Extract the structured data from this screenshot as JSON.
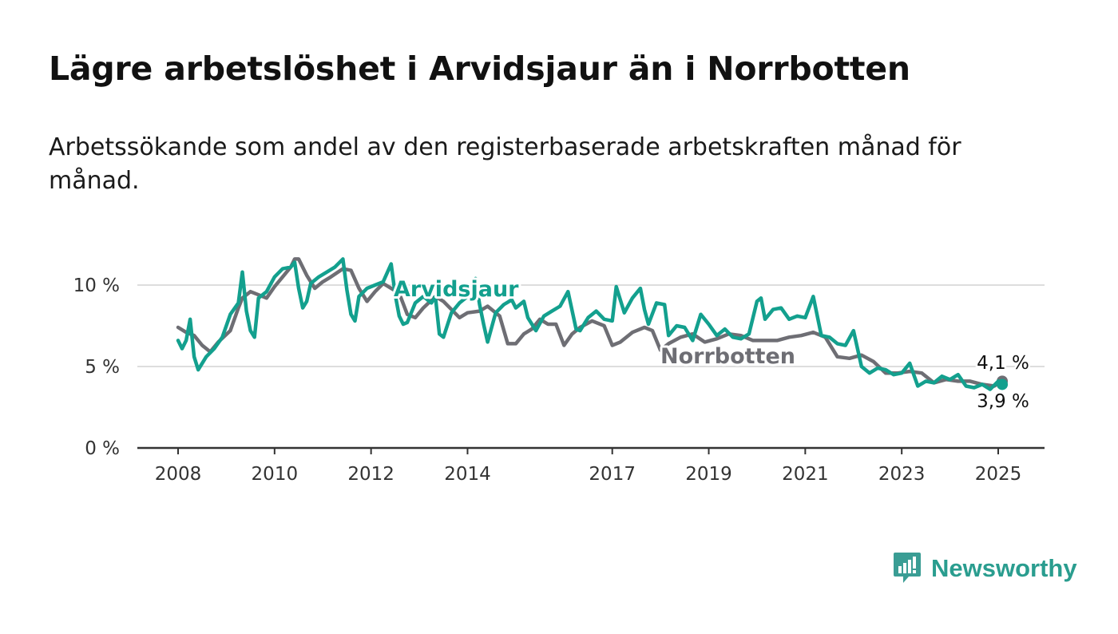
{
  "header": {
    "title": "Lägre arbetslöshet i Arvidsjaur än i Norrbotten",
    "subtitle": "Arbetssökande som andel av den registerbaserade arbetskraften månad för månad."
  },
  "brand": {
    "name": "Newsworthy",
    "icon": "bar-chart-speech-bubble-icon",
    "color": "#3a9d94"
  },
  "colors": {
    "arvidsjaur": "#13a08e",
    "norrbotten": "#6e6e74",
    "grid": "#dddddd",
    "axis": "#333333"
  },
  "chart_data": {
    "type": "line",
    "x_range": [
      "2008-01",
      "2025-02"
    ],
    "ylim": [
      0,
      12
    ],
    "y_ticks": [
      0,
      5,
      10
    ],
    "y_tick_labels": [
      "0 %",
      "5 %",
      "10 %"
    ],
    "x_ticks": [
      "2008-01",
      "2010-01",
      "2012-01",
      "2014-01",
      "2017-01",
      "2019-01",
      "2021-01",
      "2023-01",
      "2025-01"
    ],
    "x_tick_labels": [
      "2008",
      "2010",
      "2012",
      "2014",
      "2017",
      "2019",
      "2021",
      "2023",
      "2025"
    ],
    "grid": "horizontal",
    "series": [
      {
        "name": "Norrbotten",
        "key": "norrbotten",
        "end_label": "4,1 %",
        "points": [
          [
            "2008-01",
            7.4
          ],
          [
            "2008-03",
            7.1
          ],
          [
            "2008-05",
            6.9
          ],
          [
            "2008-07",
            6.3
          ],
          [
            "2008-09",
            5.9
          ],
          [
            "2008-11",
            6.5
          ],
          [
            "2009-02",
            7.2
          ],
          [
            "2009-04",
            8.6
          ],
          [
            "2009-05",
            9.2
          ],
          [
            "2009-07",
            9.6
          ],
          [
            "2009-09",
            9.4
          ],
          [
            "2009-11",
            9.2
          ],
          [
            "2010-01",
            9.9
          ],
          [
            "2010-03",
            10.5
          ],
          [
            "2010-05",
            11.1
          ],
          [
            "2010-06",
            11.6
          ],
          [
            "2010-07",
            11.6
          ],
          [
            "2010-09",
            10.6
          ],
          [
            "2010-11",
            9.8
          ],
          [
            "2011-01",
            10.2
          ],
          [
            "2011-03",
            10.5
          ],
          [
            "2011-06",
            11.0
          ],
          [
            "2011-08",
            10.9
          ],
          [
            "2011-10",
            9.8
          ],
          [
            "2011-12",
            9.0
          ],
          [
            "2012-02",
            9.6
          ],
          [
            "2012-04",
            10.1
          ],
          [
            "2012-06",
            9.8
          ],
          [
            "2012-08",
            9.5
          ],
          [
            "2012-10",
            8.2
          ],
          [
            "2012-12",
            8.0
          ],
          [
            "2013-02",
            8.6
          ],
          [
            "2013-05",
            9.3
          ],
          [
            "2013-07",
            9.0
          ],
          [
            "2013-09",
            8.5
          ],
          [
            "2013-11",
            8.0
          ],
          [
            "2014-01",
            8.3
          ],
          [
            "2014-04",
            8.4
          ],
          [
            "2014-06",
            8.7
          ],
          [
            "2014-09",
            8.1
          ],
          [
            "2014-11",
            6.4
          ],
          [
            "2015-01",
            6.4
          ],
          [
            "2015-03",
            7.0
          ],
          [
            "2015-05",
            7.3
          ],
          [
            "2015-07",
            7.9
          ],
          [
            "2015-09",
            7.6
          ],
          [
            "2015-11",
            7.6
          ],
          [
            "2016-01",
            6.3
          ],
          [
            "2016-03",
            7.0
          ],
          [
            "2016-05",
            7.4
          ],
          [
            "2016-08",
            7.8
          ],
          [
            "2016-11",
            7.5
          ],
          [
            "2017-01",
            6.3
          ],
          [
            "2017-03",
            6.5
          ],
          [
            "2017-06",
            7.1
          ],
          [
            "2017-09",
            7.4
          ],
          [
            "2017-11",
            7.2
          ],
          [
            "2018-01",
            6.0
          ],
          [
            "2018-03",
            6.4
          ],
          [
            "2018-06",
            6.8
          ],
          [
            "2018-09",
            7.0
          ],
          [
            "2018-12",
            6.5
          ],
          [
            "2019-03",
            6.7
          ],
          [
            "2019-06",
            7.0
          ],
          [
            "2019-09",
            6.9
          ],
          [
            "2019-12",
            6.6
          ],
          [
            "2020-03",
            6.6
          ],
          [
            "2020-06",
            6.6
          ],
          [
            "2020-09",
            6.8
          ],
          [
            "2020-12",
            6.9
          ],
          [
            "2021-03",
            7.1
          ],
          [
            "2021-06",
            6.8
          ],
          [
            "2021-09",
            5.6
          ],
          [
            "2021-12",
            5.5
          ],
          [
            "2022-03",
            5.7
          ],
          [
            "2022-06",
            5.3
          ],
          [
            "2022-09",
            4.6
          ],
          [
            "2022-12",
            4.6
          ],
          [
            "2023-03",
            4.7
          ],
          [
            "2023-06",
            4.6
          ],
          [
            "2023-09",
            4.0
          ],
          [
            "2023-12",
            4.2
          ],
          [
            "2024-03",
            4.1
          ],
          [
            "2024-06",
            4.1
          ],
          [
            "2024-09",
            3.9
          ],
          [
            "2024-12",
            3.8
          ],
          [
            "2025-02",
            4.1
          ]
        ]
      },
      {
        "name": "Arvidsjaur",
        "key": "arvidsjaur",
        "end_label": "3,9 %",
        "points": [
          [
            "2008-01",
            6.6
          ],
          [
            "2008-02",
            6.1
          ],
          [
            "2008-03",
            6.6
          ],
          [
            "2008-04",
            7.9
          ],
          [
            "2008-05",
            5.6
          ],
          [
            "2008-06",
            4.8
          ],
          [
            "2008-08",
            5.6
          ],
          [
            "2008-10",
            6.1
          ],
          [
            "2008-12",
            6.8
          ],
          [
            "2009-02",
            8.2
          ],
          [
            "2009-04",
            8.9
          ],
          [
            "2009-05",
            10.8
          ],
          [
            "2009-06",
            8.4
          ],
          [
            "2009-07",
            7.2
          ],
          [
            "2009-08",
            6.8
          ],
          [
            "2009-09",
            9.2
          ],
          [
            "2009-11",
            9.6
          ],
          [
            "2010-01",
            10.5
          ],
          [
            "2010-03",
            11.0
          ],
          [
            "2010-05",
            11.1
          ],
          [
            "2010-06",
            11.4
          ],
          [
            "2010-07",
            9.8
          ],
          [
            "2010-08",
            8.6
          ],
          [
            "2010-09",
            9.0
          ],
          [
            "2010-10",
            10.1
          ],
          [
            "2010-12",
            10.5
          ],
          [
            "2011-02",
            10.8
          ],
          [
            "2011-04",
            11.1
          ],
          [
            "2011-06",
            11.6
          ],
          [
            "2011-07",
            9.7
          ],
          [
            "2011-08",
            8.2
          ],
          [
            "2011-09",
            7.8
          ],
          [
            "2011-10",
            9.3
          ],
          [
            "2011-12",
            9.8
          ],
          [
            "2012-02",
            10.0
          ],
          [
            "2012-04",
            10.2
          ],
          [
            "2012-06",
            11.3
          ],
          [
            "2012-07",
            9.4
          ],
          [
            "2012-08",
            8.1
          ],
          [
            "2012-09",
            7.6
          ],
          [
            "2012-10",
            7.7
          ],
          [
            "2012-12",
            8.9
          ],
          [
            "2013-02",
            9.3
          ],
          [
            "2013-04",
            8.9
          ],
          [
            "2013-05",
            9.3
          ],
          [
            "2013-06",
            7.0
          ],
          [
            "2013-07",
            6.8
          ],
          [
            "2013-09",
            8.3
          ],
          [
            "2013-11",
            8.9
          ],
          [
            "2014-01",
            9.3
          ],
          [
            "2014-03",
            10.4
          ],
          [
            "2014-04",
            8.8
          ],
          [
            "2014-05",
            7.6
          ],
          [
            "2014-06",
            6.5
          ],
          [
            "2014-08",
            8.3
          ],
          [
            "2014-10",
            8.8
          ],
          [
            "2014-12",
            9.1
          ],
          [
            "2015-01",
            8.6
          ],
          [
            "2015-03",
            9.0
          ],
          [
            "2015-04",
            8.0
          ],
          [
            "2015-06",
            7.2
          ],
          [
            "2015-08",
            8.1
          ],
          [
            "2015-10",
            8.4
          ],
          [
            "2015-12",
            8.7
          ],
          [
            "2016-02",
            9.6
          ],
          [
            "2016-04",
            7.3
          ],
          [
            "2016-05",
            7.2
          ],
          [
            "2016-07",
            8.0
          ],
          [
            "2016-09",
            8.4
          ],
          [
            "2016-11",
            7.9
          ],
          [
            "2017-01",
            7.8
          ],
          [
            "2017-02",
            9.9
          ],
          [
            "2017-04",
            8.3
          ],
          [
            "2017-06",
            9.2
          ],
          [
            "2017-08",
            9.8
          ],
          [
            "2017-09",
            8.5
          ],
          [
            "2017-10",
            7.6
          ],
          [
            "2017-12",
            8.9
          ],
          [
            "2018-02",
            8.8
          ],
          [
            "2018-03",
            6.9
          ],
          [
            "2018-05",
            7.5
          ],
          [
            "2018-07",
            7.4
          ],
          [
            "2018-09",
            6.6
          ],
          [
            "2018-11",
            8.2
          ],
          [
            "2019-01",
            7.6
          ],
          [
            "2019-03",
            6.9
          ],
          [
            "2019-05",
            7.3
          ],
          [
            "2019-07",
            6.8
          ],
          [
            "2019-09",
            6.7
          ],
          [
            "2019-11",
            7.0
          ],
          [
            "2020-01",
            9.0
          ],
          [
            "2020-02",
            9.2
          ],
          [
            "2020-03",
            7.9
          ],
          [
            "2020-05",
            8.5
          ],
          [
            "2020-07",
            8.6
          ],
          [
            "2020-09",
            7.9
          ],
          [
            "2020-11",
            8.1
          ],
          [
            "2021-01",
            8.0
          ],
          [
            "2021-03",
            9.3
          ],
          [
            "2021-05",
            6.9
          ],
          [
            "2021-07",
            6.8
          ],
          [
            "2021-09",
            6.4
          ],
          [
            "2021-11",
            6.3
          ],
          [
            "2022-01",
            7.2
          ],
          [
            "2022-03",
            5.0
          ],
          [
            "2022-05",
            4.6
          ],
          [
            "2022-07",
            4.9
          ],
          [
            "2022-09",
            4.8
          ],
          [
            "2022-11",
            4.5
          ],
          [
            "2023-01",
            4.6
          ],
          [
            "2023-03",
            5.2
          ],
          [
            "2023-05",
            3.8
          ],
          [
            "2023-07",
            4.1
          ],
          [
            "2023-09",
            4.0
          ],
          [
            "2023-11",
            4.4
          ],
          [
            "2024-01",
            4.2
          ],
          [
            "2024-03",
            4.5
          ],
          [
            "2024-05",
            3.8
          ],
          [
            "2024-07",
            3.7
          ],
          [
            "2024-09",
            3.9
          ],
          [
            "2024-11",
            3.6
          ],
          [
            "2025-01",
            4.1
          ],
          [
            "2025-02",
            3.9
          ]
        ]
      }
    ],
    "legend": "inline-labels"
  }
}
